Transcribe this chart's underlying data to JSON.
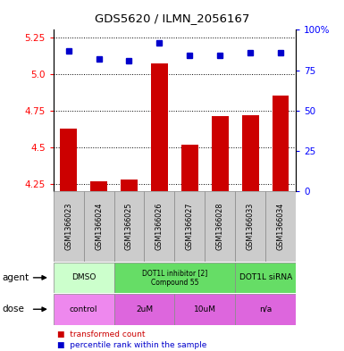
{
  "title": "GDS5620 / ILMN_2056167",
  "samples": [
    "GSM1366023",
    "GSM1366024",
    "GSM1366025",
    "GSM1366026",
    "GSM1366027",
    "GSM1366028",
    "GSM1366033",
    "GSM1366034"
  ],
  "bar_values": [
    4.63,
    4.27,
    4.28,
    5.07,
    4.52,
    4.71,
    4.72,
    4.85
  ],
  "dot_values": [
    87,
    82,
    81,
    92,
    84,
    84,
    86,
    86
  ],
  "ylim_left": [
    4.2,
    5.3
  ],
  "ylim_right": [
    0,
    100
  ],
  "yticks_left": [
    4.25,
    4.5,
    4.75,
    5.0,
    5.25
  ],
  "yticks_right": [
    0,
    25,
    50,
    75,
    100
  ],
  "ytick_labels_right": [
    "0",
    "25",
    "50",
    "75",
    "100%"
  ],
  "bar_color": "#cc0000",
  "dot_color": "#0000cc",
  "agent_groups": [
    {
      "label": "DMSO",
      "start": 0,
      "end": 2,
      "color": "#ccffcc"
    },
    {
      "label": "DOT1L inhibitor [2]\nCompound 55",
      "start": 2,
      "end": 6,
      "color": "#66dd66"
    },
    {
      "label": "DOT1L siRNA",
      "start": 6,
      "end": 8,
      "color": "#66dd66"
    }
  ],
  "dose_groups": [
    {
      "label": "control",
      "start": 0,
      "end": 2,
      "color": "#ee88ee"
    },
    {
      "label": "2uM",
      "start": 2,
      "end": 4,
      "color": "#dd66dd"
    },
    {
      "label": "10uM",
      "start": 4,
      "end": 6,
      "color": "#dd66dd"
    },
    {
      "label": "n/a",
      "start": 6,
      "end": 8,
      "color": "#dd66dd"
    }
  ],
  "legend_items": [
    {
      "label": "transformed count",
      "color": "#cc0000"
    },
    {
      "label": "percentile rank within the sample",
      "color": "#0000cc"
    }
  ],
  "bg_color": "#ffffff",
  "sample_bg": "#cccccc",
  "grid_color": "black"
}
